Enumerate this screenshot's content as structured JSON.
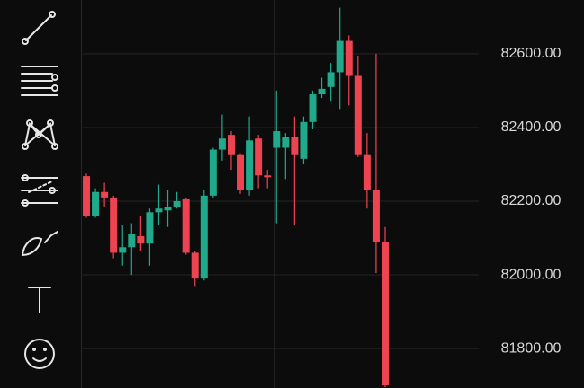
{
  "chart_data": {
    "type": "candlestick",
    "ylim": [
      81693,
      82746
    ],
    "yticks": [
      {
        "value": 82600,
        "label": "82600.00"
      },
      {
        "value": 82400,
        "label": "82400.00"
      },
      {
        "value": 82200,
        "label": "82200.00"
      },
      {
        "value": 82000,
        "label": "82000.00"
      },
      {
        "value": 81800,
        "label": "81800.00"
      }
    ],
    "grid": true,
    "up_color": "#20a98a",
    "down_color": "#ee4452",
    "open": [
      82268,
      82160,
      82225,
      82210,
      82060,
      82075,
      82105,
      82085,
      82170,
      82175,
      82185,
      82205,
      82060,
      81990,
      82215,
      82340,
      82380,
      82325,
      82230,
      82370,
      82270,
      82345,
      82345,
      82375,
      82315,
      82415,
      82490,
      82510,
      82550,
      82635,
      82540,
      82325,
      82230,
      82090
    ],
    "high": [
      82275,
      82235,
      82250,
      82215,
      82135,
      82140,
      82160,
      82180,
      82245,
      82230,
      82225,
      82210,
      82065,
      82230,
      82345,
      82435,
      82390,
      82330,
      82430,
      82380,
      82285,
      82500,
      82385,
      82430,
      82430,
      82500,
      82535,
      82575,
      82725,
      82650,
      82595,
      82385,
      82600,
      82130
    ],
    "low": [
      82155,
      82155,
      82185,
      82045,
      82025,
      82000,
      82065,
      82025,
      82135,
      82130,
      82180,
      82055,
      81970,
      81985,
      82210,
      82310,
      82285,
      82220,
      82215,
      82235,
      82235,
      82140,
      82260,
      82135,
      82300,
      82395,
      82480,
      82470,
      82450,
      82460,
      82320,
      82180,
      82005,
      81695
    ],
    "close": [
      82161,
      82225,
      82210,
      82060,
      82075,
      82110,
      82085,
      82170,
      82180,
      82185,
      82200,
      82060,
      81990,
      82215,
      82340,
      82370,
      82325,
      82230,
      82365,
      82270,
      82265,
      82390,
      82375,
      82325,
      82415,
      82490,
      82505,
      82550,
      82635,
      82540,
      82325,
      82230,
      82090,
      81700
    ]
  }
}
